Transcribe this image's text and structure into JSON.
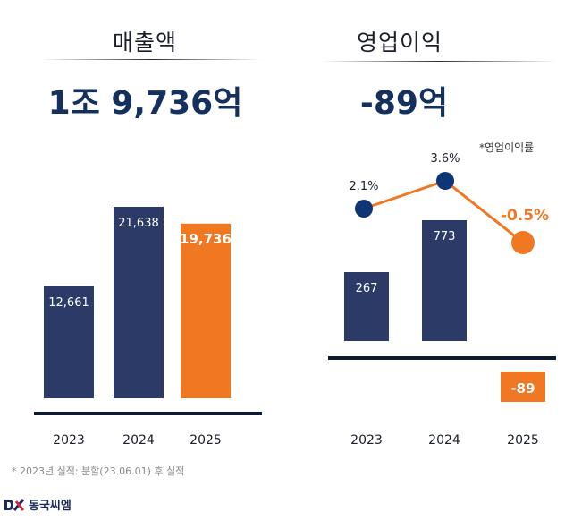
{
  "left": {
    "title": "매출액",
    "headline_value": "1조 9,736억"
  },
  "right": {
    "title": "영업이익",
    "headline_value": "-89억",
    "margin_note": "*영업이익률"
  },
  "footnote": "* 2023년 실적: 분할(23.06.01) 후 실적",
  "logo": {
    "mark": "DK",
    "name": "동국씨엠"
  },
  "colors": {
    "navy": "#2b3a66",
    "orange": "#f07822",
    "dot_navy": "#0e3575",
    "axis": "#0f1a30"
  },
  "chart_data": [
    {
      "type": "bar",
      "title": "매출액",
      "unit": "억",
      "categories": [
        "2023",
        "2024",
        "2025"
      ],
      "values": [
        12661,
        21638,
        19736
      ],
      "labels": [
        "12,661",
        "21,638",
        "19,736"
      ],
      "highlight_index": 2,
      "ylim": [
        0,
        23000
      ],
      "grid": false,
      "xlabel": "",
      "ylabel": ""
    },
    {
      "type": "bar",
      "title": "영업이익",
      "unit": "억",
      "categories": [
        "2023",
        "2024",
        "2025"
      ],
      "values": [
        267,
        773,
        -89
      ],
      "labels": [
        "267",
        "773",
        "-89"
      ],
      "highlight_index": 2,
      "grid": false,
      "xlabel": "",
      "ylabel": "",
      "overlay_line": {
        "type": "line",
        "name": "*영업이익률",
        "values": [
          2.1,
          3.6,
          -0.5
        ],
        "labels": [
          "2.1%",
          "3.6%",
          "-0.5%"
        ],
        "unit": "%"
      }
    }
  ]
}
